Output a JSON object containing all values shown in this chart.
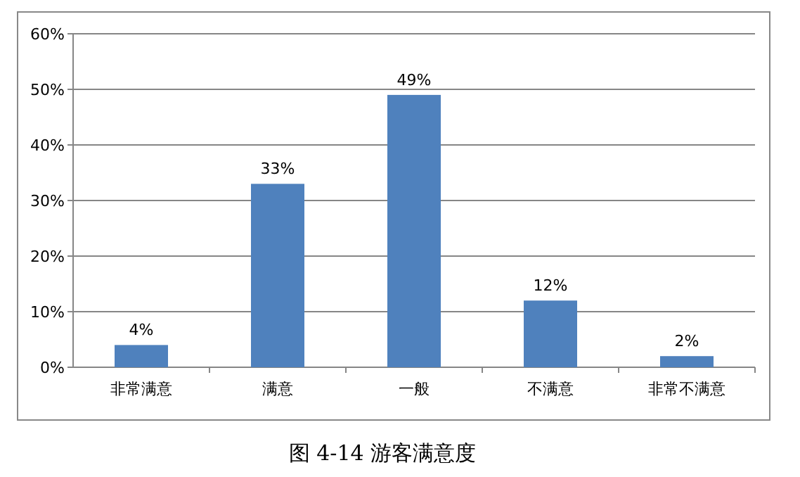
{
  "chart_data": {
    "type": "bar",
    "categories": [
      "非常满意",
      "满意",
      "一般",
      "不满意",
      "非常不满意"
    ],
    "values": [
      4,
      33,
      49,
      12,
      2
    ],
    "value_labels": [
      "4%",
      "33%",
      "49%",
      "12%",
      "2%"
    ],
    "color": "#4f81bd",
    "ylim": [
      0,
      60
    ],
    "yticks": [
      {
        "value": 0,
        "label": "0%"
      },
      {
        "value": 10,
        "label": "10%"
      },
      {
        "value": 20,
        "label": "20%"
      },
      {
        "value": 30,
        "label": "30%"
      },
      {
        "value": 40,
        "label": "40%"
      },
      {
        "value": 50,
        "label": "50%"
      },
      {
        "value": 60,
        "label": "60%"
      }
    ],
    "grid": "y",
    "annotations": [
      "图 4-14  游客满意度"
    ]
  }
}
